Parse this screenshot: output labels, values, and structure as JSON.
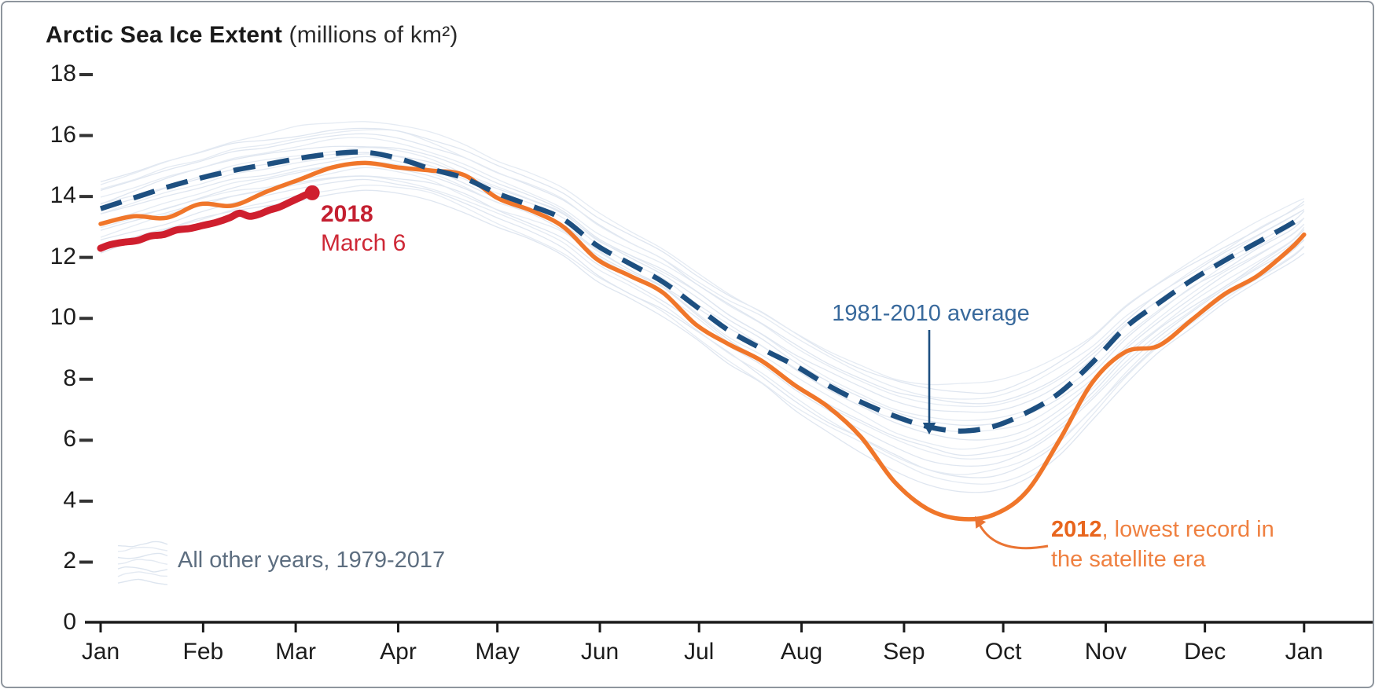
{
  "title": {
    "main": "Arctic Sea Ice Extent",
    "unit": " (millions of km²)"
  },
  "legend": {
    "label": "All other years, 1979-2017"
  },
  "annotations": {
    "y2018": {
      "title": "2018",
      "subtitle": "March 6"
    },
    "average": {
      "label": "1981-2010 average"
    },
    "y2012": {
      "bold": "2012",
      "rest": ", lowest record in",
      "line2": "the satellite era"
    }
  },
  "colors": {
    "average_dash": "#1d4f80",
    "record_2012": "#f0762a",
    "year_2018": "#cf1f2e",
    "other_years_line": "#dde5ef",
    "other_years_line_alt": "#e4eaf2",
    "axis": "#1a1a1a",
    "avg_label_text": "#38699c",
    "legend_text": "#5d6e80",
    "ann_2012_bold": "#e8651d",
    "ann_2012_text": "#ef8040",
    "ann_2018_text": "#c41f30"
  },
  "chart_data": {
    "type": "line",
    "title": "Arctic Sea Ice Extent (millions of km²)",
    "x_axis": {
      "unit": "month (day-of-year scale)",
      "tick_labels": [
        "Jan",
        "Feb",
        "Mar",
        "Apr",
        "May",
        "Jun",
        "Jul",
        "Aug",
        "Sep",
        "Oct",
        "Nov",
        "Dec",
        "Jan"
      ],
      "tick_doy": [
        1,
        32,
        60,
        91,
        121,
        152,
        182,
        213,
        244,
        274,
        305,
        335,
        365
      ],
      "range_days": [
        1,
        365
      ]
    },
    "y_axis": {
      "label": "millions of km²",
      "ticks": [
        0,
        2,
        4,
        6,
        8,
        10,
        12,
        14,
        16,
        18
      ],
      "range": [
        0,
        18
      ],
      "grid": false
    },
    "legend_position": "bottom-left",
    "series": [
      {
        "name": "1981-2010 average",
        "style": "dashed",
        "color": "#1d4f80",
        "doy": [
          1,
          11,
          21,
          31,
          41,
          51,
          61,
          71,
          81,
          91,
          101,
          111,
          121,
          131,
          141,
          151,
          161,
          171,
          181,
          191,
          201,
          211,
          221,
          231,
          241,
          251,
          261,
          271,
          281,
          291,
          301,
          311,
          321,
          331,
          341,
          351,
          361,
          365
        ],
        "values": [
          13.6,
          13.95,
          14.3,
          14.6,
          14.85,
          15.05,
          15.25,
          15.4,
          15.45,
          15.25,
          14.9,
          14.6,
          14.1,
          13.7,
          13.25,
          12.4,
          11.8,
          11.2,
          10.4,
          9.6,
          9.0,
          8.45,
          7.8,
          7.25,
          6.8,
          6.45,
          6.3,
          6.45,
          6.9,
          7.55,
          8.55,
          9.7,
          10.5,
          11.25,
          11.9,
          12.5,
          13.1,
          13.4
        ],
        "min": {
          "value": 6.3,
          "approx_date": "mid-September"
        }
      },
      {
        "name": "2012",
        "style": "solid",
        "color": "#f0762a",
        "note": "lowest record in the satellite era",
        "doy": [
          1,
          11,
          21,
          31,
          41,
          51,
          61,
          71,
          81,
          91,
          101,
          111,
          121,
          131,
          141,
          151,
          161,
          171,
          181,
          191,
          201,
          211,
          221,
          231,
          241,
          251,
          261,
          271,
          281,
          291,
          301,
          311,
          321,
          331,
          341,
          351,
          361,
          365
        ],
        "values": [
          13.1,
          13.35,
          13.3,
          13.75,
          13.7,
          14.15,
          14.55,
          14.95,
          15.1,
          14.95,
          14.85,
          14.7,
          13.95,
          13.55,
          13.0,
          11.95,
          11.4,
          10.85,
          9.8,
          9.15,
          8.6,
          7.8,
          7.1,
          6.1,
          4.65,
          3.75,
          3.42,
          3.55,
          4.3,
          6.0,
          7.9,
          8.9,
          9.1,
          9.95,
          10.8,
          11.4,
          12.3,
          12.75
        ],
        "min": {
          "value": 3.4,
          "approx_date": "mid-September"
        }
      },
      {
        "name": "2018",
        "style": "solid-thick",
        "color": "#cf1f2e",
        "end_label": "March 6",
        "doy": [
          1,
          4,
          8,
          12,
          16,
          20,
          24,
          28,
          32,
          36,
          40,
          43,
          46,
          49,
          52,
          55,
          58,
          61,
          63,
          65
        ],
        "values": [
          12.3,
          12.42,
          12.5,
          12.55,
          12.7,
          12.75,
          12.9,
          12.95,
          13.05,
          13.15,
          13.3,
          13.45,
          13.35,
          13.42,
          13.55,
          13.65,
          13.8,
          13.95,
          14.05,
          14.12
        ]
      }
    ],
    "band": {
      "name": "All other years, 1979-2017",
      "line_count": 18,
      "doy": [
        1,
        11,
        21,
        31,
        41,
        51,
        61,
        71,
        81,
        91,
        101,
        111,
        121,
        131,
        141,
        151,
        161,
        171,
        181,
        191,
        201,
        211,
        221,
        231,
        241,
        251,
        261,
        271,
        281,
        291,
        301,
        311,
        321,
        331,
        341,
        351,
        361,
        365
      ],
      "upper": [
        14.5,
        14.85,
        15.2,
        15.5,
        15.8,
        16.0,
        16.2,
        16.35,
        16.4,
        16.3,
        16.0,
        15.6,
        15.1,
        14.7,
        14.2,
        13.4,
        12.8,
        12.3,
        11.6,
        10.9,
        10.3,
        9.6,
        9.0,
        8.5,
        8.1,
        7.9,
        7.85,
        7.9,
        8.2,
        8.7,
        9.4,
        10.4,
        11.2,
        11.9,
        12.5,
        13.1,
        13.7,
        14.0
      ],
      "lower": [
        12.3,
        12.6,
        12.9,
        13.2,
        13.5,
        13.7,
        13.9,
        14.1,
        14.2,
        14.1,
        13.9,
        13.5,
        13.0,
        12.6,
        12.1,
        11.3,
        10.7,
        10.1,
        9.3,
        8.5,
        7.8,
        7.0,
        6.3,
        5.7,
        5.1,
        4.6,
        4.3,
        4.35,
        4.7,
        5.5,
        6.6,
        7.8,
        8.8,
        9.6,
        10.4,
        11.1,
        11.8,
        12.2
      ]
    }
  }
}
